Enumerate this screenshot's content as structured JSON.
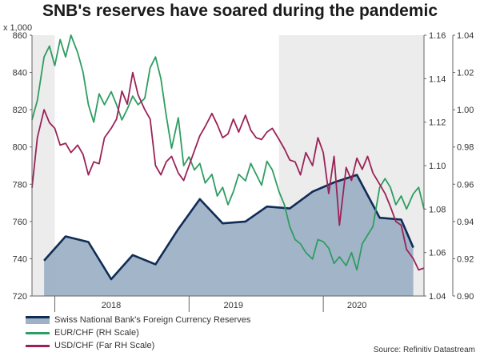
{
  "title": "SNB's reserves have soared during the pandemic",
  "source": "Source: Refinitiv Datastream",
  "colors": {
    "reserves_line": "#0f2c55",
    "reserves_fill": "#9eb1c6",
    "eurchf": "#2e9d61",
    "usdchf": "#9b2257",
    "shade": "#ececec"
  },
  "chart_data": {
    "type": "line",
    "title": "SNB's reserves have soared during the pandemic",
    "left_axis": {
      "unit_label": "x 1,000",
      "min": 720,
      "max": 860,
      "ticks": [
        "720",
        "740",
        "760",
        "780",
        "800",
        "820",
        "840",
        "860"
      ]
    },
    "rh_axis": {
      "label": "RH Scale",
      "min": 1.04,
      "max": 1.16,
      "ticks": [
        "1.04",
        "1.06",
        "1.08",
        "1.10",
        "1.12",
        "1.14",
        "1.16"
      ]
    },
    "far_rh_axis": {
      "label": "Far RH Scale",
      "min": 0.9,
      "max": 1.04,
      "ticks": [
        "0.90",
        "0.92",
        "0.94",
        "0.96",
        "0.98",
        "1.00",
        "1.02",
        "1.04"
      ]
    },
    "x_axis": {
      "start": 2017.83,
      "end": 2020.75,
      "labels": [
        "2018",
        "2019",
        "2020"
      ]
    },
    "shaded_periods": [
      [
        2017.83,
        2018.0
      ],
      [
        2019.67,
        2020.75
      ]
    ],
    "series": [
      {
        "name": "Swiss National Bank's Foreign Currency Reserves",
        "axis": "left",
        "style": "area",
        "x": [
          2017.92,
          2018.08,
          2018.25,
          2018.42,
          2018.58,
          2018.75,
          2018.92,
          2019.08,
          2019.25,
          2019.42,
          2019.58,
          2019.75,
          2019.92,
          2020.08,
          2020.25,
          2020.42,
          2020.58,
          2020.67
        ],
        "y": [
          739,
          752,
          749,
          729,
          742,
          737,
          756,
          772,
          759,
          760,
          768,
          767,
          776,
          781,
          785,
          762,
          761,
          746
        ]
      },
      {
        "name": "EUR/CHF (RH Scale)",
        "axis": "rh",
        "style": "line",
        "x": [
          2017.83,
          2017.87,
          2017.92,
          2017.96,
          2018.0,
          2018.04,
          2018.08,
          2018.12,
          2018.17,
          2018.21,
          2018.25,
          2018.29,
          2018.33,
          2018.37,
          2018.42,
          2018.46,
          2018.5,
          2018.54,
          2018.58,
          2018.62,
          2018.67,
          2018.71,
          2018.75,
          2018.79,
          2018.83,
          2018.87,
          2018.92,
          2018.96,
          2019.0,
          2019.04,
          2019.08,
          2019.12,
          2019.17,
          2019.21,
          2019.25,
          2019.29,
          2019.33,
          2019.37,
          2019.42,
          2019.46,
          2019.5,
          2019.54,
          2019.58,
          2019.62,
          2019.67,
          2019.71,
          2019.75,
          2019.79,
          2019.83,
          2019.87,
          2019.92,
          2019.96,
          2020.0,
          2020.04,
          2020.08,
          2020.12,
          2020.17,
          2020.21,
          2020.25,
          2020.29,
          2020.33,
          2020.37,
          2020.42,
          2020.46,
          2020.5,
          2020.54,
          2020.58,
          2020.62,
          2020.67,
          2020.71,
          2020.75
        ],
        "y": [
          1.121,
          1.13,
          1.15,
          1.155,
          1.146,
          1.158,
          1.15,
          1.16,
          1.152,
          1.143,
          1.128,
          1.12,
          1.133,
          1.128,
          1.134,
          1.128,
          1.121,
          1.126,
          1.132,
          1.128,
          1.131,
          1.145,
          1.15,
          1.14,
          1.123,
          1.108,
          1.122,
          1.1,
          1.104,
          1.098,
          1.101,
          1.092,
          1.096,
          1.086,
          1.09,
          1.082,
          1.088,
          1.096,
          1.093,
          1.101,
          1.096,
          1.091,
          1.102,
          1.098,
          1.088,
          1.082,
          1.072,
          1.066,
          1.064,
          1.06,
          1.057,
          1.066,
          1.065,
          1.062,
          1.055,
          1.058,
          1.054,
          1.06,
          1.052,
          1.064,
          1.068,
          1.072,
          1.09,
          1.094,
          1.09,
          1.082,
          1.086,
          1.08,
          1.087,
          1.09,
          1.08
        ]
      },
      {
        "name": "USD/CHF (Far RH Scale)",
        "axis": "far_rh",
        "style": "line",
        "x": [
          2017.83,
          2017.87,
          2017.92,
          2017.96,
          2018.0,
          2018.04,
          2018.08,
          2018.12,
          2018.17,
          2018.21,
          2018.25,
          2018.29,
          2018.33,
          2018.37,
          2018.42,
          2018.46,
          2018.5,
          2018.54,
          2018.58,
          2018.62,
          2018.67,
          2018.71,
          2018.75,
          2018.79,
          2018.83,
          2018.87,
          2018.92,
          2018.96,
          2019.0,
          2019.04,
          2019.08,
          2019.12,
          2019.17,
          2019.21,
          2019.25,
          2019.29,
          2019.33,
          2019.37,
          2019.42,
          2019.46,
          2019.5,
          2019.54,
          2019.58,
          2019.62,
          2019.67,
          2019.71,
          2019.75,
          2019.79,
          2019.83,
          2019.87,
          2019.92,
          2019.96,
          2020.0,
          2020.04,
          2020.08,
          2020.12,
          2020.17,
          2020.21,
          2020.25,
          2020.29,
          2020.33,
          2020.37,
          2020.42,
          2020.46,
          2020.5,
          2020.54,
          2020.58,
          2020.62,
          2020.67,
          2020.71,
          2020.75
        ],
        "y": [
          0.958,
          0.985,
          1.0,
          0.993,
          0.99,
          0.981,
          0.982,
          0.977,
          0.981,
          0.976,
          0.965,
          0.972,
          0.971,
          0.985,
          0.99,
          0.995,
          1.01,
          1.003,
          1.02,
          1.008,
          1.0,
          0.995,
          0.97,
          0.965,
          0.972,
          0.975,
          0.966,
          0.962,
          0.97,
          0.978,
          0.986,
          0.991,
          0.998,
          0.992,
          0.985,
          0.987,
          0.995,
          0.988,
          0.997,
          0.989,
          0.985,
          0.984,
          0.988,
          0.99,
          0.984,
          0.979,
          0.973,
          0.972,
          0.965,
          0.977,
          0.97,
          0.985,
          0.977,
          0.955,
          0.975,
          0.938,
          0.969,
          0.962,
          0.974,
          0.968,
          0.975,
          0.966,
          0.96,
          0.955,
          0.948,
          0.94,
          0.938,
          0.925,
          0.92,
          0.914,
          0.915
        ]
      }
    ]
  }
}
